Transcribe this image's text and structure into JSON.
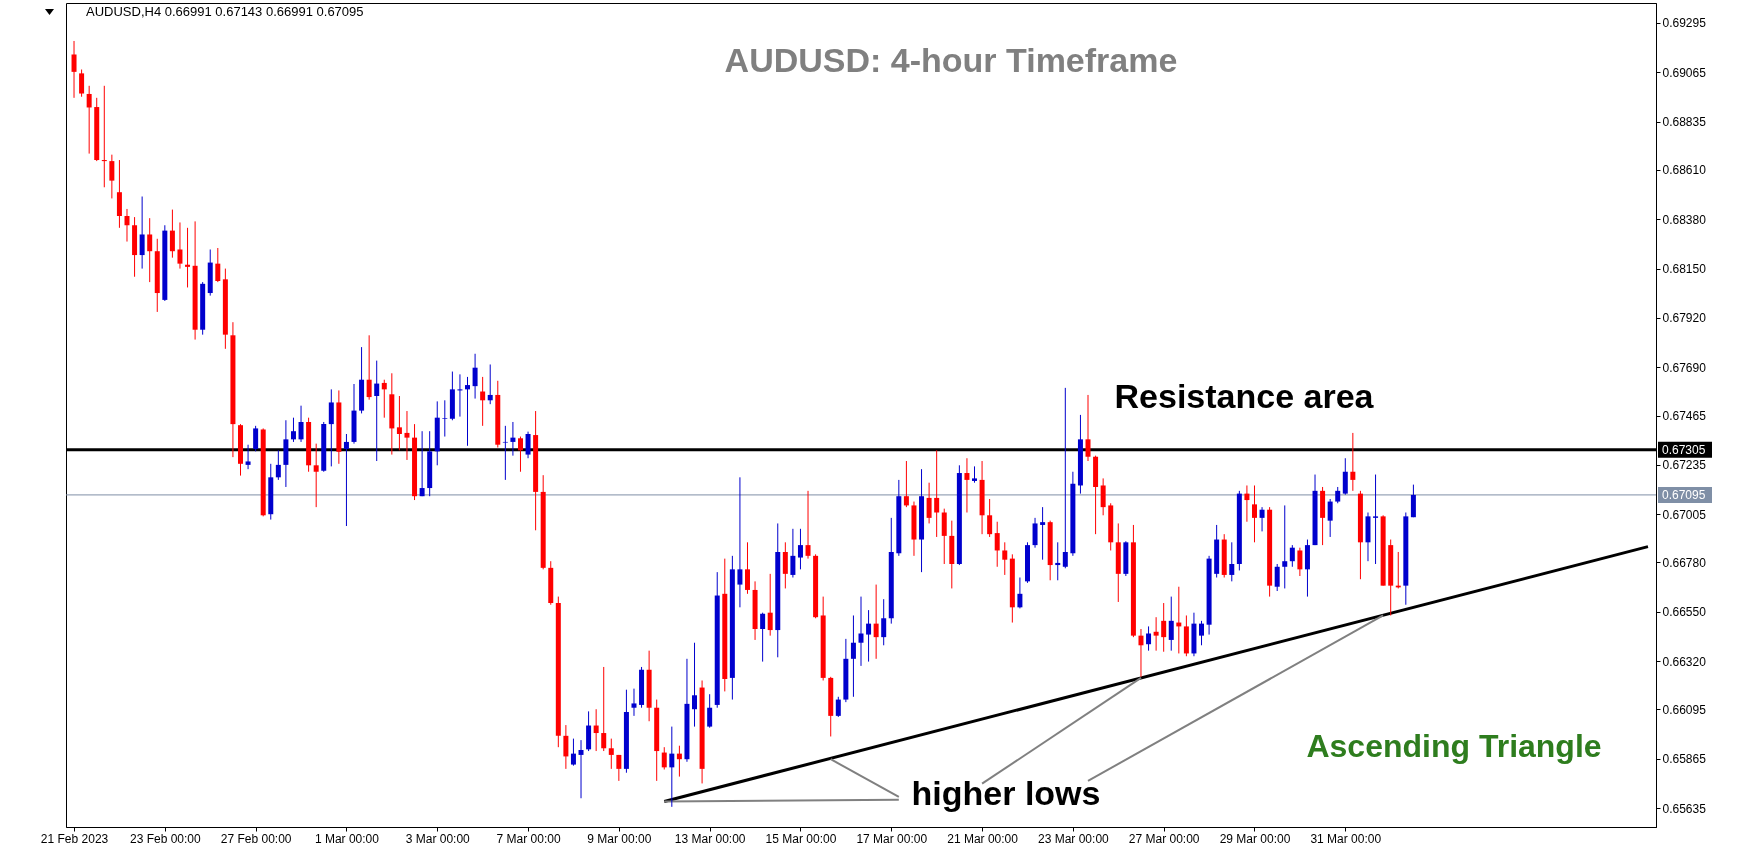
{
  "chart_data": {
    "type": "candlestick",
    "title": "AUDUSD: 4-hour Timeframe",
    "annotations": [
      "AUDUSD,H4  0.66991 0.67143 0.66991 0.67095",
      "Resistance area",
      "higher lows",
      "Ascending Triangle"
    ],
    "categories": [
      "21 Feb 2023",
      null,
      null,
      null,
      null,
      null,
      null,
      null,
      null,
      null,
      null,
      null,
      "23 Feb 00:00",
      null,
      null,
      null,
      null,
      null,
      null,
      null,
      null,
      null,
      null,
      null,
      "27 Feb 00:00",
      null,
      null,
      null,
      null,
      null,
      null,
      null,
      null,
      null,
      null,
      null,
      "1 Mar 00:00",
      null,
      null,
      null,
      null,
      null,
      null,
      null,
      null,
      null,
      null,
      null,
      "3 Mar 00:00",
      null,
      null,
      null,
      null,
      null,
      null,
      null,
      null,
      null,
      null,
      null,
      "7 Mar 00:00",
      null,
      null,
      null,
      null,
      null,
      null,
      null,
      null,
      null,
      null,
      null,
      "9 Mar 00:00",
      null,
      null,
      null,
      null,
      null,
      null,
      null,
      null,
      null,
      null,
      null,
      "13 Mar 00:00",
      null,
      null,
      null,
      null,
      null,
      null,
      null,
      null,
      null,
      null,
      null,
      "15 Mar 00:00",
      null,
      null,
      null,
      null,
      null,
      null,
      null,
      null,
      null,
      null,
      null,
      "17 Mar 00:00",
      null,
      null,
      null,
      null,
      null,
      null,
      null,
      null,
      null,
      null,
      null,
      "21 Mar 00:00",
      null,
      null,
      null,
      null,
      null,
      null,
      null,
      null,
      null,
      null,
      null,
      "23 Mar 00:00",
      null,
      null,
      null,
      null,
      null,
      null,
      null,
      null,
      null,
      null,
      null,
      "27 Mar 00:00",
      null,
      null,
      null,
      null,
      null,
      null,
      null,
      null,
      null,
      null,
      null,
      "29 Mar 00:00",
      null,
      null,
      null,
      null,
      null,
      null,
      null,
      null,
      null,
      null,
      null,
      "31 Mar 00:00",
      null,
      null,
      null,
      null,
      null,
      null,
      null,
      null,
      null,
      null,
      null,
      null,
      null,
      null,
      null,
      null,
      null,
      null,
      null,
      null,
      null,
      null,
      null,
      null,
      null,
      null,
      null,
      null,
      null,
      null,
      null,
      null,
      null,
      null,
      null,
      null,
      null,
      null,
      null,
      null
    ],
    "ohlc": [
      [
        0.69148,
        0.69211,
        0.68946,
        0.69067
      ],
      [
        0.6906,
        0.69078,
        0.68951,
        0.68966
      ],
      [
        0.68964,
        0.69002,
        0.68686,
        0.68901
      ],
      [
        0.68903,
        0.68946,
        0.68651,
        0.68656
      ],
      [
        0.68656,
        0.69002,
        0.68529,
        0.68651
      ],
      [
        0.68651,
        0.68681,
        0.68477,
        0.6856
      ],
      [
        0.68506,
        0.68656,
        0.6834,
        0.68395
      ],
      [
        0.68395,
        0.68428,
        0.68276,
        0.68352
      ],
      [
        0.68352,
        0.6839,
        0.68112,
        0.68213
      ],
      [
        0.68213,
        0.68486,
        0.6815,
        0.68309
      ],
      [
        0.68309,
        0.68385,
        0.68087,
        0.68231
      ],
      [
        0.68231,
        0.68289,
        0.67948,
        0.68036
      ],
      [
        0.68004,
        0.68352,
        0.67999,
        0.68327
      ],
      [
        0.68327,
        0.68425,
        0.68201,
        0.68231
      ],
      [
        0.68239,
        0.68365,
        0.6815,
        0.68173
      ],
      [
        0.68168,
        0.6834,
        0.68062,
        0.68158
      ],
      [
        0.68163,
        0.6837,
        0.67819,
        0.67865
      ],
      [
        0.67865,
        0.68087,
        0.67842,
        0.68079
      ],
      [
        0.68036,
        0.68239,
        0.68024,
        0.68178
      ],
      [
        0.68173,
        0.68246,
        0.68087,
        0.68092
      ],
      [
        0.681,
        0.6815,
        0.67776,
        0.67842
      ],
      [
        0.67839,
        0.679,
        0.67271,
        0.67425
      ],
      [
        0.6742,
        0.67425,
        0.67185,
        0.6724
      ],
      [
        0.67235,
        0.67329,
        0.67215,
        0.67251
      ],
      [
        0.67309,
        0.67417,
        0.67298,
        0.67405
      ],
      [
        0.674,
        0.67405,
        0.66995,
        0.67
      ],
      [
        0.67005,
        0.6724,
        0.6698,
        0.67177
      ],
      [
        0.67177,
        0.67303,
        0.67165,
        0.67235
      ],
      [
        0.67235,
        0.67443,
        0.67132,
        0.67354
      ],
      [
        0.67354,
        0.67455,
        0.67342,
        0.67392
      ],
      [
        0.67354,
        0.67511,
        0.67342,
        0.67435
      ],
      [
        0.67435,
        0.67455,
        0.67203,
        0.67233
      ],
      [
        0.67233,
        0.67334,
        0.67038,
        0.67203
      ],
      [
        0.67208,
        0.67435,
        0.67203,
        0.67425
      ],
      [
        0.67425,
        0.67587,
        0.67228,
        0.67526
      ],
      [
        0.67526,
        0.67582,
        0.6724,
        0.67296
      ],
      [
        0.67309,
        0.67379,
        0.6695,
        0.67342
      ],
      [
        0.67342,
        0.67612,
        0.67334,
        0.67488
      ],
      [
        0.67488,
        0.67784,
        0.67475,
        0.67632
      ],
      [
        0.67632,
        0.67839,
        0.67539,
        0.67551
      ],
      [
        0.67556,
        0.67721,
        0.67253,
        0.67614
      ],
      [
        0.67617,
        0.67632,
        0.67455,
        0.67587
      ],
      [
        0.67564,
        0.67662,
        0.67283,
        0.67405
      ],
      [
        0.6741,
        0.67556,
        0.67303,
        0.67379
      ],
      [
        0.67384,
        0.67486,
        0.67258,
        0.67362
      ],
      [
        0.67362,
        0.67425,
        0.67071,
        0.67089
      ],
      [
        0.67089,
        0.67392,
        0.67089,
        0.67127
      ],
      [
        0.67127,
        0.67392,
        0.67089,
        0.67298
      ],
      [
        0.67298,
        0.67531,
        0.67233,
        0.67455
      ],
      [
        0.6745,
        0.67536,
        0.67367,
        0.67453
      ],
      [
        0.6745,
        0.6767,
        0.67443,
        0.67587
      ],
      [
        0.67582,
        0.67657,
        0.6746,
        0.67587
      ],
      [
        0.67587,
        0.67645,
        0.67324,
        0.67607
      ],
      [
        0.67602,
        0.67753,
        0.67544,
        0.67688
      ],
      [
        0.67577,
        0.67645,
        0.67417,
        0.67536
      ],
      [
        0.67536,
        0.67703,
        0.67518,
        0.67561
      ],
      [
        0.67561,
        0.67627,
        0.67316,
        0.67329
      ],
      [
        0.67339,
        0.67417,
        0.67165,
        0.67342
      ],
      [
        0.67342,
        0.67435,
        0.67278,
        0.67362
      ],
      [
        0.67359,
        0.67367,
        0.67203,
        0.67303
      ],
      [
        0.67283,
        0.6739,
        0.67266,
        0.67379
      ],
      [
        0.67374,
        0.67486,
        0.6693,
        0.67109
      ],
      [
        0.67109,
        0.67187,
        0.66748,
        0.66755
      ],
      [
        0.66755,
        0.66786,
        0.66583,
        0.66591
      ],
      [
        0.66591,
        0.66621,
        0.65919,
        0.65972
      ],
      [
        0.65972,
        0.66022,
        0.65818,
        0.65876
      ],
      [
        0.65838,
        0.65959,
        0.65833,
        0.65889
      ],
      [
        0.65883,
        0.65952,
        0.65681,
        0.65906
      ],
      [
        0.65909,
        0.66086,
        0.65901,
        0.6602
      ],
      [
        0.6602,
        0.66096,
        0.65901,
        0.65985
      ],
      [
        0.65985,
        0.66293,
        0.65901,
        0.65914
      ],
      [
        0.65914,
        0.65959,
        0.65818,
        0.65883
      ],
      [
        0.65883,
        0.65883,
        0.65762,
        0.65818
      ],
      [
        0.65818,
        0.66187,
        0.658,
        0.66083
      ],
      [
        0.66103,
        0.66192,
        0.66065,
        0.66123
      ],
      [
        0.66116,
        0.66293,
        0.66103,
        0.6628
      ],
      [
        0.6628,
        0.66369,
        0.6604,
        0.66103
      ],
      [
        0.66103,
        0.66141,
        0.65762,
        0.65901
      ],
      [
        0.65894,
        0.65919,
        0.65815,
        0.65825
      ],
      [
        0.65825,
        0.66015,
        0.65641,
        0.65889
      ],
      [
        0.65889,
        0.65926,
        0.65782,
        0.65863
      ],
      [
        0.65863,
        0.66331,
        0.65851,
        0.66121
      ],
      [
        0.66096,
        0.66406,
        0.66015,
        0.66161
      ],
      [
        0.66197,
        0.6623,
        0.6575,
        0.65818
      ],
      [
        0.66015,
        0.66166,
        0.6601,
        0.66103
      ],
      [
        0.66116,
        0.66735,
        0.66103,
        0.66626
      ],
      [
        0.66634,
        0.66798,
        0.66179,
        0.66237
      ],
      [
        0.66242,
        0.66811,
        0.66141,
        0.66748
      ],
      [
        0.66677,
        0.67177,
        0.66571,
        0.66748
      ],
      [
        0.66748,
        0.66874,
        0.66634,
        0.66652
      ],
      [
        0.66652,
        0.66692,
        0.66419,
        0.6647
      ],
      [
        0.6647,
        0.66546,
        0.66318,
        0.66541
      ],
      [
        0.66546,
        0.66727,
        0.66439,
        0.66465
      ],
      [
        0.66465,
        0.66962,
        0.66338,
        0.66829
      ],
      [
        0.66829,
        0.66874,
        0.66659,
        0.66727
      ],
      [
        0.66722,
        0.66937,
        0.6671,
        0.66811
      ],
      [
        0.66803,
        0.66937,
        0.66748,
        0.66861
      ],
      [
        0.66861,
        0.67114,
        0.66798,
        0.66811
      ],
      [
        0.66811,
        0.66818,
        0.6652,
        0.66525
      ],
      [
        0.66533,
        0.66621,
        0.6623,
        0.66242
      ],
      [
        0.66242,
        0.66247,
        0.65969,
        0.66065
      ],
      [
        0.66065,
        0.66154,
        0.6606,
        0.66141
      ],
      [
        0.66141,
        0.66424,
        0.66129,
        0.66331
      ],
      [
        0.66331,
        0.66533,
        0.66154,
        0.66406
      ],
      [
        0.66406,
        0.66621,
        0.66298,
        0.66449
      ],
      [
        0.66444,
        0.66558,
        0.66318,
        0.66495
      ],
      [
        0.66495,
        0.66677,
        0.66331,
        0.66432
      ],
      [
        0.66432,
        0.66609,
        0.66394,
        0.6652
      ],
      [
        0.6652,
        0.66988,
        0.66495,
        0.66829
      ],
      [
        0.66823,
        0.67165,
        0.66811,
        0.67089
      ],
      [
        0.67089,
        0.67253,
        0.67038,
        0.67046
      ],
      [
        0.67046,
        0.67064,
        0.66811,
        0.66887
      ],
      [
        0.66887,
        0.67215,
        0.66735,
        0.67089
      ],
      [
        0.67081,
        0.67152,
        0.66962,
        0.66988
      ],
      [
        0.67081,
        0.67303,
        0.66899,
        0.67013
      ],
      [
        0.67013,
        0.67031,
        0.66773,
        0.66904
      ],
      [
        0.66904,
        0.66975,
        0.66659,
        0.66773
      ],
      [
        0.66773,
        0.67233,
        0.66768,
        0.67197
      ],
      [
        0.67197,
        0.67266,
        0.67013,
        0.67165
      ],
      [
        0.6716,
        0.67228,
        0.67152,
        0.67172
      ],
      [
        0.67165,
        0.67253,
        0.66912,
        0.67
      ],
      [
        0.67,
        0.67076,
        0.66899,
        0.66912
      ],
      [
        0.66917,
        0.6697,
        0.6676,
        0.66836
      ],
      [
        0.66836,
        0.66874,
        0.66722,
        0.66793
      ],
      [
        0.66798,
        0.66818,
        0.665,
        0.66571
      ],
      [
        0.66571,
        0.6671,
        0.66566,
        0.66634
      ],
      [
        0.66692,
        0.66874,
        0.66685,
        0.66861
      ],
      [
        0.66861,
        0.66988,
        0.66849,
        0.66962
      ],
      [
        0.66955,
        0.67038,
        0.66793,
        0.66968
      ],
      [
        0.66968,
        0.66975,
        0.66697,
        0.66768
      ],
      [
        0.66768,
        0.66874,
        0.66697,
        0.66778
      ],
      [
        0.6676,
        0.67594,
        0.66753,
        0.66829
      ],
      [
        0.66823,
        0.67203,
        0.66811,
        0.67147
      ],
      [
        0.67139,
        0.67468,
        0.67101,
        0.67354
      ],
      [
        0.67354,
        0.67561,
        0.67253,
        0.67273
      ],
      [
        0.67273,
        0.67278,
        0.66912,
        0.67132
      ],
      [
        0.67139,
        0.67172,
        0.67,
        0.67038
      ],
      [
        0.67046,
        0.67056,
        0.66836,
        0.66874
      ],
      [
        0.66874,
        0.66962,
        0.66596,
        0.66727
      ],
      [
        0.66727,
        0.66879,
        0.66717,
        0.66874
      ],
      [
        0.66874,
        0.66955,
        0.66432,
        0.66439
      ],
      [
        0.66439,
        0.6647,
        0.66247,
        0.66394
      ],
      [
        0.66399,
        0.66482,
        0.66369,
        0.66449
      ],
      [
        0.66457,
        0.66525,
        0.66369,
        0.66439
      ],
      [
        0.66508,
        0.66591,
        0.66364,
        0.66432
      ],
      [
        0.66419,
        0.66621,
        0.66369,
        0.66508
      ],
      [
        0.665,
        0.66667,
        0.66356,
        0.66482
      ],
      [
        0.66482,
        0.66533,
        0.66343,
        0.66356
      ],
      [
        0.66356,
        0.66546,
        0.66343,
        0.66495
      ],
      [
        0.66439,
        0.66508,
        0.66394,
        0.66495
      ],
      [
        0.6649,
        0.66811,
        0.66444,
        0.66798
      ],
      [
        0.66727,
        0.66955,
        0.6671,
        0.66887
      ],
      [
        0.66887,
        0.66912,
        0.6671,
        0.66722
      ],
      [
        0.66722,
        0.66874,
        0.66692,
        0.66773
      ],
      [
        0.66773,
        0.67114,
        0.66743,
        0.67101
      ],
      [
        0.67101,
        0.67139,
        0.6697,
        0.67071
      ],
      [
        0.67051,
        0.67139,
        0.66874,
        0.66988
      ],
      [
        0.66988,
        0.67038,
        0.66925,
        0.67026
      ],
      [
        0.67026,
        0.67038,
        0.66621,
        0.66672
      ],
      [
        0.66667,
        0.66773,
        0.66647,
        0.6676
      ],
      [
        0.6676,
        0.67046,
        0.66659,
        0.66786
      ],
      [
        0.66786,
        0.66861,
        0.6676,
        0.66849
      ],
      [
        0.66836,
        0.66849,
        0.66717,
        0.66748
      ],
      [
        0.66748,
        0.66887,
        0.66621,
        0.66861
      ],
      [
        0.66861,
        0.6719,
        0.66861,
        0.67114
      ],
      [
        0.67114,
        0.67132,
        0.66861,
        0.66988
      ],
      [
        0.66975,
        0.67076,
        0.66899,
        0.67064
      ],
      [
        0.67064,
        0.67132,
        0.67056,
        0.67114
      ],
      [
        0.67101,
        0.67266,
        0.67096,
        0.67203
      ],
      [
        0.67203,
        0.67384,
        0.67114,
        0.67165
      ],
      [
        0.67101,
        0.67114,
        0.66702,
        0.66874
      ],
      [
        0.66874,
        0.67013,
        0.66786,
        0.66995
      ],
      [
        0.66988,
        0.6719,
        0.66773,
        0.66995
      ],
      [
        0.66995,
        0.67,
        0.66672,
        0.66672
      ],
      [
        0.66861,
        0.66887,
        0.66533,
        0.66672
      ],
      [
        0.66672,
        0.66829,
        0.66659,
        0.66664
      ],
      [
        0.66672,
        0.67013,
        0.66583,
        0.66995
      ],
      [
        0.66991,
        0.67143,
        0.66991,
        0.67095
      ],
      null,
      null,
      null,
      null,
      null,
      null,
      null,
      null,
      null,
      null,
      null,
      null,
      null,
      null,
      null,
      null,
      null,
      null,
      null,
      null,
      null,
      null,
      null,
      null,
      null,
      null,
      null,
      null,
      null,
      null,
      null
    ],
    "colors": [
      "#ff0000",
      "#ff0000",
      "#ff0000",
      "#ff0000",
      "#ff0000",
      "#ff0000",
      "#ff0000",
      "#ff0000",
      "#ff0000",
      "#0000cd",
      "#ff0000",
      "#ff0000",
      "#0000cd",
      "#ff0000",
      "#ff0000",
      "#ff0000",
      "#ff0000",
      "#0000cd",
      "#0000cd",
      "#ff0000",
      "#ff0000",
      "#ff0000",
      "#ff0000",
      "#0000cd",
      "#0000cd",
      "#ff0000",
      "#0000cd",
      "#0000cd",
      "#0000cd",
      "#0000cd",
      "#0000cd",
      "#ff0000",
      "#ff0000",
      "#0000cd",
      "#0000cd",
      "#ff0000",
      "#0000cd",
      "#0000cd",
      "#0000cd",
      "#ff0000",
      "#0000cd",
      "#ff0000",
      "#ff0000",
      "#ff0000",
      "#ff0000",
      "#ff0000",
      "#0000cd",
      "#0000cd",
      "#0000cd",
      "#0000cd",
      "#0000cd",
      "#0000cd",
      "#0000cd",
      "#0000cd",
      "#ff0000",
      "#0000cd",
      "#ff0000",
      "#0000cd",
      "#0000cd",
      "#ff0000",
      "#0000cd",
      "#ff0000",
      "#ff0000",
      "#ff0000",
      "#ff0000",
      "#ff0000",
      "#0000cd",
      "#0000cd",
      "#0000cd",
      "#ff0000",
      "#ff0000",
      "#ff0000",
      "#ff0000",
      "#0000cd",
      "#0000cd",
      "#0000cd",
      "#ff0000",
      "#ff0000",
      "#ff0000",
      "#0000cd",
      "#ff0000",
      "#0000cd",
      "#0000cd",
      "#ff0000",
      "#0000cd",
      "#0000cd",
      "#ff0000",
      "#0000cd",
      "#0000cd",
      "#ff0000",
      "#ff0000",
      "#0000cd",
      "#ff0000",
      "#0000cd",
      "#ff0000",
      "#0000cd",
      "#0000cd",
      "#ff0000",
      "#ff0000",
      "#ff0000",
      "#ff0000",
      "#0000cd",
      "#0000cd",
      "#0000cd",
      "#0000cd",
      "#0000cd",
      "#ff0000",
      "#0000cd",
      "#0000cd",
      "#0000cd",
      "#ff0000",
      "#ff0000",
      "#0000cd",
      "#ff0000",
      "#ff0000",
      "#ff0000",
      "#ff0000",
      "#0000cd",
      "#ff0000",
      "#0000cd",
      "#ff0000",
      "#ff0000",
      "#ff0000",
      "#ff0000",
      "#ff0000",
      "#0000cd",
      "#0000cd",
      "#0000cd",
      "#0000cd",
      "#ff0000",
      "#0000cd",
      "#0000cd",
      "#0000cd",
      "#0000cd",
      "#ff0000",
      "#ff0000",
      "#ff0000",
      "#ff0000",
      "#ff0000",
      "#0000cd",
      "#ff0000",
      "#ff0000",
      "#0000cd",
      "#ff0000",
      "#ff0000",
      "#0000cd",
      "#ff0000",
      "#ff0000",
      "#0000cd",
      "#0000cd",
      "#0000cd",
      "#0000cd",
      "#ff0000",
      "#0000cd",
      "#0000cd",
      "#ff0000",
      "#ff0000",
      "#0000cd",
      "#ff0000",
      "#0000cd",
      "#0000cd",
      "#0000cd",
      "#ff0000",
      "#0000cd",
      "#0000cd",
      "#ff0000",
      "#0000cd",
      "#0000cd",
      "#0000cd",
      "#ff0000",
      "#ff0000",
      "#0000cd",
      "#0000cd",
      "#ff0000",
      "#ff0000",
      "#ff0000",
      "#0000cd",
      "#0000cd",
      null,
      null,
      null,
      null,
      null,
      null,
      null,
      null,
      null,
      null,
      null,
      null,
      null,
      null,
      null,
      null,
      null,
      null,
      null,
      null,
      null,
      null,
      null,
      null,
      null,
      null,
      null,
      null,
      null,
      null,
      null
    ],
    "series": [
      {
        "type": "line",
        "color": "#000000",
        "values": [
          null,
          null,
          null,
          null,
          null,
          null,
          null,
          null,
          null,
          null,
          null,
          null,
          null,
          null,
          null,
          null,
          null,
          null,
          null,
          null,
          null,
          null,
          null,
          null,
          null,
          null,
          null,
          null,
          null,
          null,
          null,
          null,
          null,
          null,
          null,
          null,
          null,
          null,
          null,
          null,
          null,
          null,
          null,
          null,
          null,
          null,
          null,
          null,
          null,
          null,
          null,
          null,
          null,
          null,
          null,
          null,
          null,
          null,
          null,
          null,
          null,
          null,
          null,
          null,
          null,
          null,
          null,
          null,
          null,
          null,
          null,
          null,
          null,
          null,
          null,
          null,
          null,
          null,
          0.65666,
          null,
          null,
          null,
          null,
          null,
          null,
          null,
          null,
          null,
          null,
          null,
          null,
          null,
          null,
          null,
          null,
          null,
          null,
          null,
          null,
          null,
          null,
          null,
          null,
          null,
          null,
          null,
          null,
          null,
          null,
          null,
          null,
          null,
          null,
          null,
          null,
          null,
          null,
          null,
          null,
          null,
          null,
          null,
          null,
          null,
          null,
          null,
          null,
          null,
          null,
          null,
          null,
          null,
          null,
          null,
          null,
          null,
          null,
          null,
          null,
          null,
          null,
          null,
          null,
          null,
          null,
          null,
          null,
          null,
          null,
          null,
          null,
          null,
          null,
          null,
          null,
          null,
          null,
          null,
          null,
          null,
          null,
          null,
          null,
          null,
          null,
          null,
          null,
          null,
          null,
          null,
          null,
          null,
          null,
          null,
          null,
          null,
          null,
          null,
          null,
          null,
          null,
          null,
          null,
          null,
          null,
          null,
          null,
          null,
          null,
          null,
          null,
          null,
          null,
          null,
          null,
          null,
          null,
          null,
          null,
          null,
          null,
          null,
          null,
          null,
          null,
          null,
          null,
          null,
          0.66854
        ]
      },
      {
        "type": "line",
        "color": "#808080",
        "values": [
          null,
          null,
          null,
          null,
          null,
          null,
          null,
          null,
          null,
          null,
          null,
          null,
          null,
          null,
          null,
          null,
          null,
          null,
          null,
          null,
          null,
          null,
          null,
          null,
          null,
          null,
          null,
          null,
          null,
          null,
          null,
          null,
          null,
          null,
          null,
          null,
          null,
          null,
          null,
          null,
          null,
          null,
          null,
          null,
          null,
          null,
          null,
          null,
          null,
          null,
          null,
          null,
          null,
          null,
          null,
          null,
          null,
          null,
          null,
          null,
          null,
          null,
          null,
          null,
          null,
          null,
          null,
          null,
          null,
          null,
          null,
          null,
          null,
          null,
          null,
          null,
          null,
          null,
          0.65666,
          null,
          null,
          null,
          null,
          null,
          null,
          null,
          null,
          null,
          null,
          null,
          null,
          null,
          null,
          null,
          null,
          null,
          null,
          null,
          null,
          null,
          null,
          null,
          null,
          null,
          null,
          null,
          null,
          null,
          null,
          0.65674,
          null,
          null,
          null,
          null,
          null,
          null,
          null,
          null,
          null,
          null,
          null,
          null,
          null,
          null,
          null,
          null,
          null,
          null,
          null,
          null,
          null,
          null,
          null,
          null,
          null,
          null,
          null,
          null,
          null,
          null,
          null,
          null,
          null,
          null,
          null,
          null,
          null,
          null,
          null,
          null,
          null,
          null,
          null,
          null,
          null,
          null,
          null,
          null,
          null,
          null,
          null,
          null,
          null,
          null,
          null,
          null,
          null,
          null,
          null,
          null,
          null,
          null,
          null,
          null,
          null,
          null,
          null,
          null,
          null,
          null,
          null,
          null,
          null,
          null,
          null,
          null,
          null,
          null,
          null,
          null,
          null,
          null,
          null,
          null,
          null,
          null,
          null,
          null,
          null,
          null,
          null,
          null,
          null,
          null,
          null,
          null,
          null,
          null,
          null
        ]
      },
      {
        "type": "line",
        "color": "#808080",
        "values": [
          null,
          null,
          null,
          null,
          null,
          null,
          null,
          null,
          null,
          null,
          null,
          null,
          null,
          null,
          null,
          null,
          null,
          null,
          null,
          null,
          null,
          null,
          null,
          null,
          null,
          null,
          null,
          null,
          null,
          null,
          null,
          null,
          null,
          null,
          null,
          null,
          null,
          null,
          null,
          null,
          null,
          null,
          null,
          null,
          null,
          null,
          null,
          null,
          null,
          null,
          null,
          null,
          null,
          null,
          null,
          null,
          null,
          null,
          null,
          null,
          null,
          null,
          null,
          null,
          null,
          null,
          null,
          null,
          null,
          null,
          null,
          null,
          null,
          null,
          null,
          null,
          null,
          null,
          null,
          null,
          null,
          null,
          null,
          null,
          null,
          null,
          null,
          null,
          null,
          null,
          null,
          null,
          null,
          null,
          null,
          null,
          null,
          null,
          null,
          null,
          0.65863,
          null,
          null,
          null,
          null,
          null,
          null,
          null,
          null,
          0.65687,
          null,
          null,
          null,
          null,
          null,
          null,
          null,
          null,
          null,
          null,
          null,
          null,
          null,
          null,
          null,
          null,
          null,
          null,
          null,
          null,
          null,
          null,
          null,
          null,
          null,
          null,
          null,
          null,
          null,
          null,
          null,
          null,
          null,
          null,
          null,
          null,
          null,
          null,
          null,
          null,
          null,
          null,
          null,
          null,
          null,
          null,
          null,
          null,
          null,
          null,
          null,
          null,
          null,
          null,
          null,
          null,
          null,
          null,
          null,
          null,
          null,
          null,
          null,
          null,
          null,
          null,
          null,
          null,
          null,
          null,
          null,
          null,
          null,
          null,
          null,
          null,
          null,
          null,
          null,
          null,
          null,
          null,
          null,
          null,
          null,
          null,
          null,
          null,
          null,
          null,
          null,
          null,
          null,
          null,
          null,
          null,
          null,
          null,
          null
        ]
      },
      {
        "type": "line",
        "color": "#808080",
        "values": [
          null,
          null,
          null,
          null,
          null,
          null,
          null,
          null,
          null,
          null,
          null,
          null,
          null,
          null,
          null,
          null,
          null,
          null,
          null,
          null,
          null,
          null,
          null,
          null,
          null,
          null,
          null,
          null,
          null,
          null,
          null,
          null,
          null,
          null,
          null,
          null,
          null,
          null,
          null,
          null,
          null,
          null,
          null,
          null,
          null,
          null,
          null,
          null,
          null,
          null,
          null,
          null,
          null,
          null,
          null,
          null,
          null,
          null,
          null,
          null,
          null,
          null,
          null,
          null,
          null,
          null,
          null,
          null,
          null,
          null,
          null,
          null,
          null,
          null,
          null,
          null,
          null,
          null,
          null,
          null,
          null,
          null,
          null,
          null,
          null,
          null,
          null,
          null,
          null,
          null,
          null,
          null,
          null,
          null,
          null,
          null,
          null,
          null,
          null,
          null,
          null,
          null,
          null,
          null,
          null,
          null,
          null,
          null,
          null,
          null,
          null,
          null,
          null,
          null,
          null,
          null,
          null,
          null,
          null,
          null,
          0.65749,
          null,
          null,
          null,
          null,
          null,
          null,
          null,
          null,
          null,
          null,
          null,
          null,
          null,
          null,
          null,
          null,
          null,
          null,
          null,
          null,
          0.66242,
          null,
          null,
          null,
          null,
          null,
          null,
          null,
          null,
          null,
          null,
          null,
          null,
          null,
          null,
          null,
          null,
          null,
          null,
          null,
          null,
          null,
          null,
          null,
          null,
          null,
          null,
          null,
          null,
          null,
          null,
          null,
          null,
          null,
          null,
          null,
          null,
          null,
          null,
          null,
          null,
          null,
          null,
          null,
          null,
          null,
          null,
          null,
          null,
          null,
          null,
          null,
          null,
          null,
          null,
          null,
          null,
          null,
          null,
          null,
          null,
          null,
          null,
          null,
          null,
          null,
          null,
          null
        ]
      },
      {
        "type": "line",
        "color": "#808080",
        "values": [
          null,
          null,
          null,
          null,
          null,
          null,
          null,
          null,
          null,
          null,
          null,
          null,
          null,
          null,
          null,
          null,
          null,
          null,
          null,
          null,
          null,
          null,
          null,
          null,
          null,
          null,
          null,
          null,
          null,
          null,
          null,
          null,
          null,
          null,
          null,
          null,
          null,
          null,
          null,
          null,
          null,
          null,
          null,
          null,
          null,
          null,
          null,
          null,
          null,
          null,
          null,
          null,
          null,
          null,
          null,
          null,
          null,
          null,
          null,
          null,
          null,
          null,
          null,
          null,
          null,
          null,
          null,
          null,
          null,
          null,
          null,
          null,
          null,
          null,
          null,
          null,
          null,
          null,
          null,
          null,
          null,
          null,
          null,
          null,
          null,
          null,
          null,
          null,
          null,
          null,
          null,
          null,
          null,
          null,
          null,
          null,
          null,
          null,
          null,
          null,
          null,
          null,
          null,
          null,
          null,
          null,
          null,
          null,
          null,
          null,
          null,
          null,
          null,
          null,
          null,
          null,
          null,
          null,
          null,
          null,
          null,
          null,
          null,
          null,
          null,
          null,
          null,
          null,
          null,
          null,
          null,
          null,
          null,
          null,
          0.65762,
          null,
          null,
          null,
          null,
          null,
          null,
          null,
          null,
          null,
          null,
          null,
          null,
          null,
          null,
          null,
          null,
          null,
          null,
          null,
          null,
          null,
          null,
          null,
          null,
          null,
          null,
          null,
          null,
          null,
          null,
          null,
          null,
          null,
          null,
          null,
          null,
          null,
          null,
          0.66533,
          null,
          null,
          null,
          null,
          null,
          null,
          null,
          null,
          null,
          null,
          null,
          null,
          null,
          null,
          null,
          null,
          null,
          null,
          null,
          null,
          null,
          null,
          null,
          null,
          null,
          null,
          null,
          null,
          null,
          null,
          null,
          null,
          null,
          null,
          null
        ]
      }
    ],
    "ref_lines": [
      {
        "axis": "y",
        "value": 0.67305,
        "label": "0.67305",
        "color": "#000000"
      },
      {
        "axis": "y",
        "value": 0.67095,
        "label": "0.67095",
        "color": "#7f8fa6"
      }
    ],
    "ylim": [
      0.65547,
      0.69388
    ],
    "yticks": [
      0.65635,
      0.65865,
      0.66095,
      {
        "value": 0.6632,
        "label": "0.66320"
      },
      {
        "value": 0.6655,
        "label": "0.66550"
      },
      {
        "value": 0.6678,
        "label": "0.66780"
      },
      0.67005,
      0.67235,
      0.67465,
      {
        "value": 0.6769,
        "label": "0.67690"
      },
      {
        "value": 0.6792,
        "label": "0.67920"
      },
      {
        "value": 0.6815,
        "label": "0.68150"
      },
      {
        "value": 0.6838,
        "label": "0.68380"
      },
      {
        "value": 0.6861,
        "label": "0.68610"
      },
      0.68835,
      0.69065,
      0.69295
    ]
  }
}
